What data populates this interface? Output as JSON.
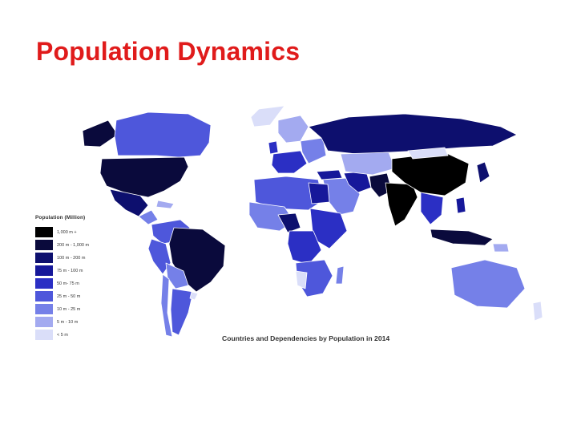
{
  "slide": {
    "title": "Population Dynamics"
  },
  "map": {
    "caption": "Countries and Dependencies by Population in 2014",
    "legend": {
      "title": "Population (Million)",
      "items": [
        {
          "label": "1,000 m +",
          "color": "#000000"
        },
        {
          "label": "200 m - 1,000 m",
          "color": "#0a0a3c"
        },
        {
          "label": "100 m - 200 m",
          "color": "#0d0f6e"
        },
        {
          "label": "75 m - 100 m",
          "color": "#16189a"
        },
        {
          "label": "50 m- 75 m",
          "color": "#2b2fc4"
        },
        {
          "label": "25 m - 50 m",
          "color": "#4e57db"
        },
        {
          "label": "10 m - 25 m",
          "color": "#7580e8"
        },
        {
          "label": "5 m - 10 m",
          "color": "#a3aaf0"
        },
        {
          "label": "< 5 m",
          "color": "#dadef9"
        }
      ]
    },
    "ocean_color": "#ffffff",
    "border_color": "#ffffff"
  }
}
